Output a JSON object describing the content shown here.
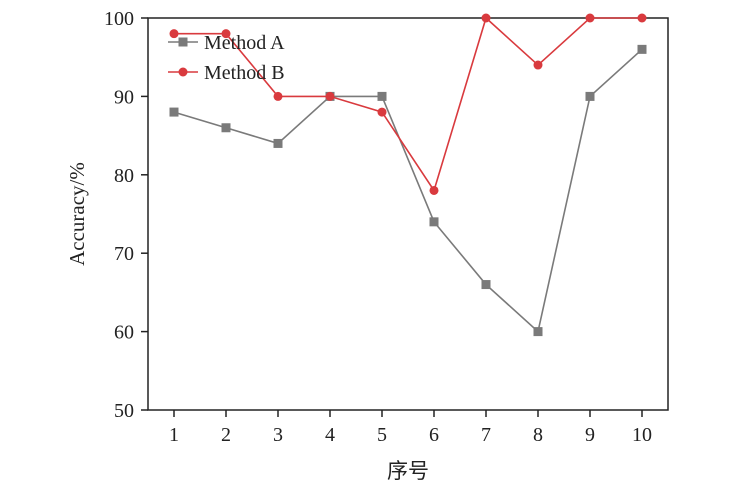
{
  "chart_data": {
    "type": "line",
    "title": "",
    "xlabel": "序号",
    "ylabel": "Accuracy/%",
    "categories": [
      "1",
      "2",
      "3",
      "4",
      "5",
      "6",
      "7",
      "8",
      "9",
      "10"
    ],
    "x": [
      1,
      2,
      3,
      4,
      5,
      6,
      7,
      8,
      9,
      10
    ],
    "xlim": [
      0.5,
      10.5
    ],
    "ylim": [
      50,
      100
    ],
    "yticks": [
      50,
      60,
      70,
      80,
      90,
      100
    ],
    "grid": false,
    "legend_position": "top-left",
    "series": [
      {
        "name": "Method A",
        "marker": "square",
        "color": "#7a7a7a",
        "values": [
          88,
          86,
          84,
          90,
          90,
          74,
          66,
          60,
          90,
          96
        ]
      },
      {
        "name": "Method B",
        "marker": "circle",
        "color": "#d93a3e",
        "values": [
          98,
          98,
          90,
          90,
          88,
          78,
          100,
          94,
          100,
          100
        ]
      }
    ]
  }
}
